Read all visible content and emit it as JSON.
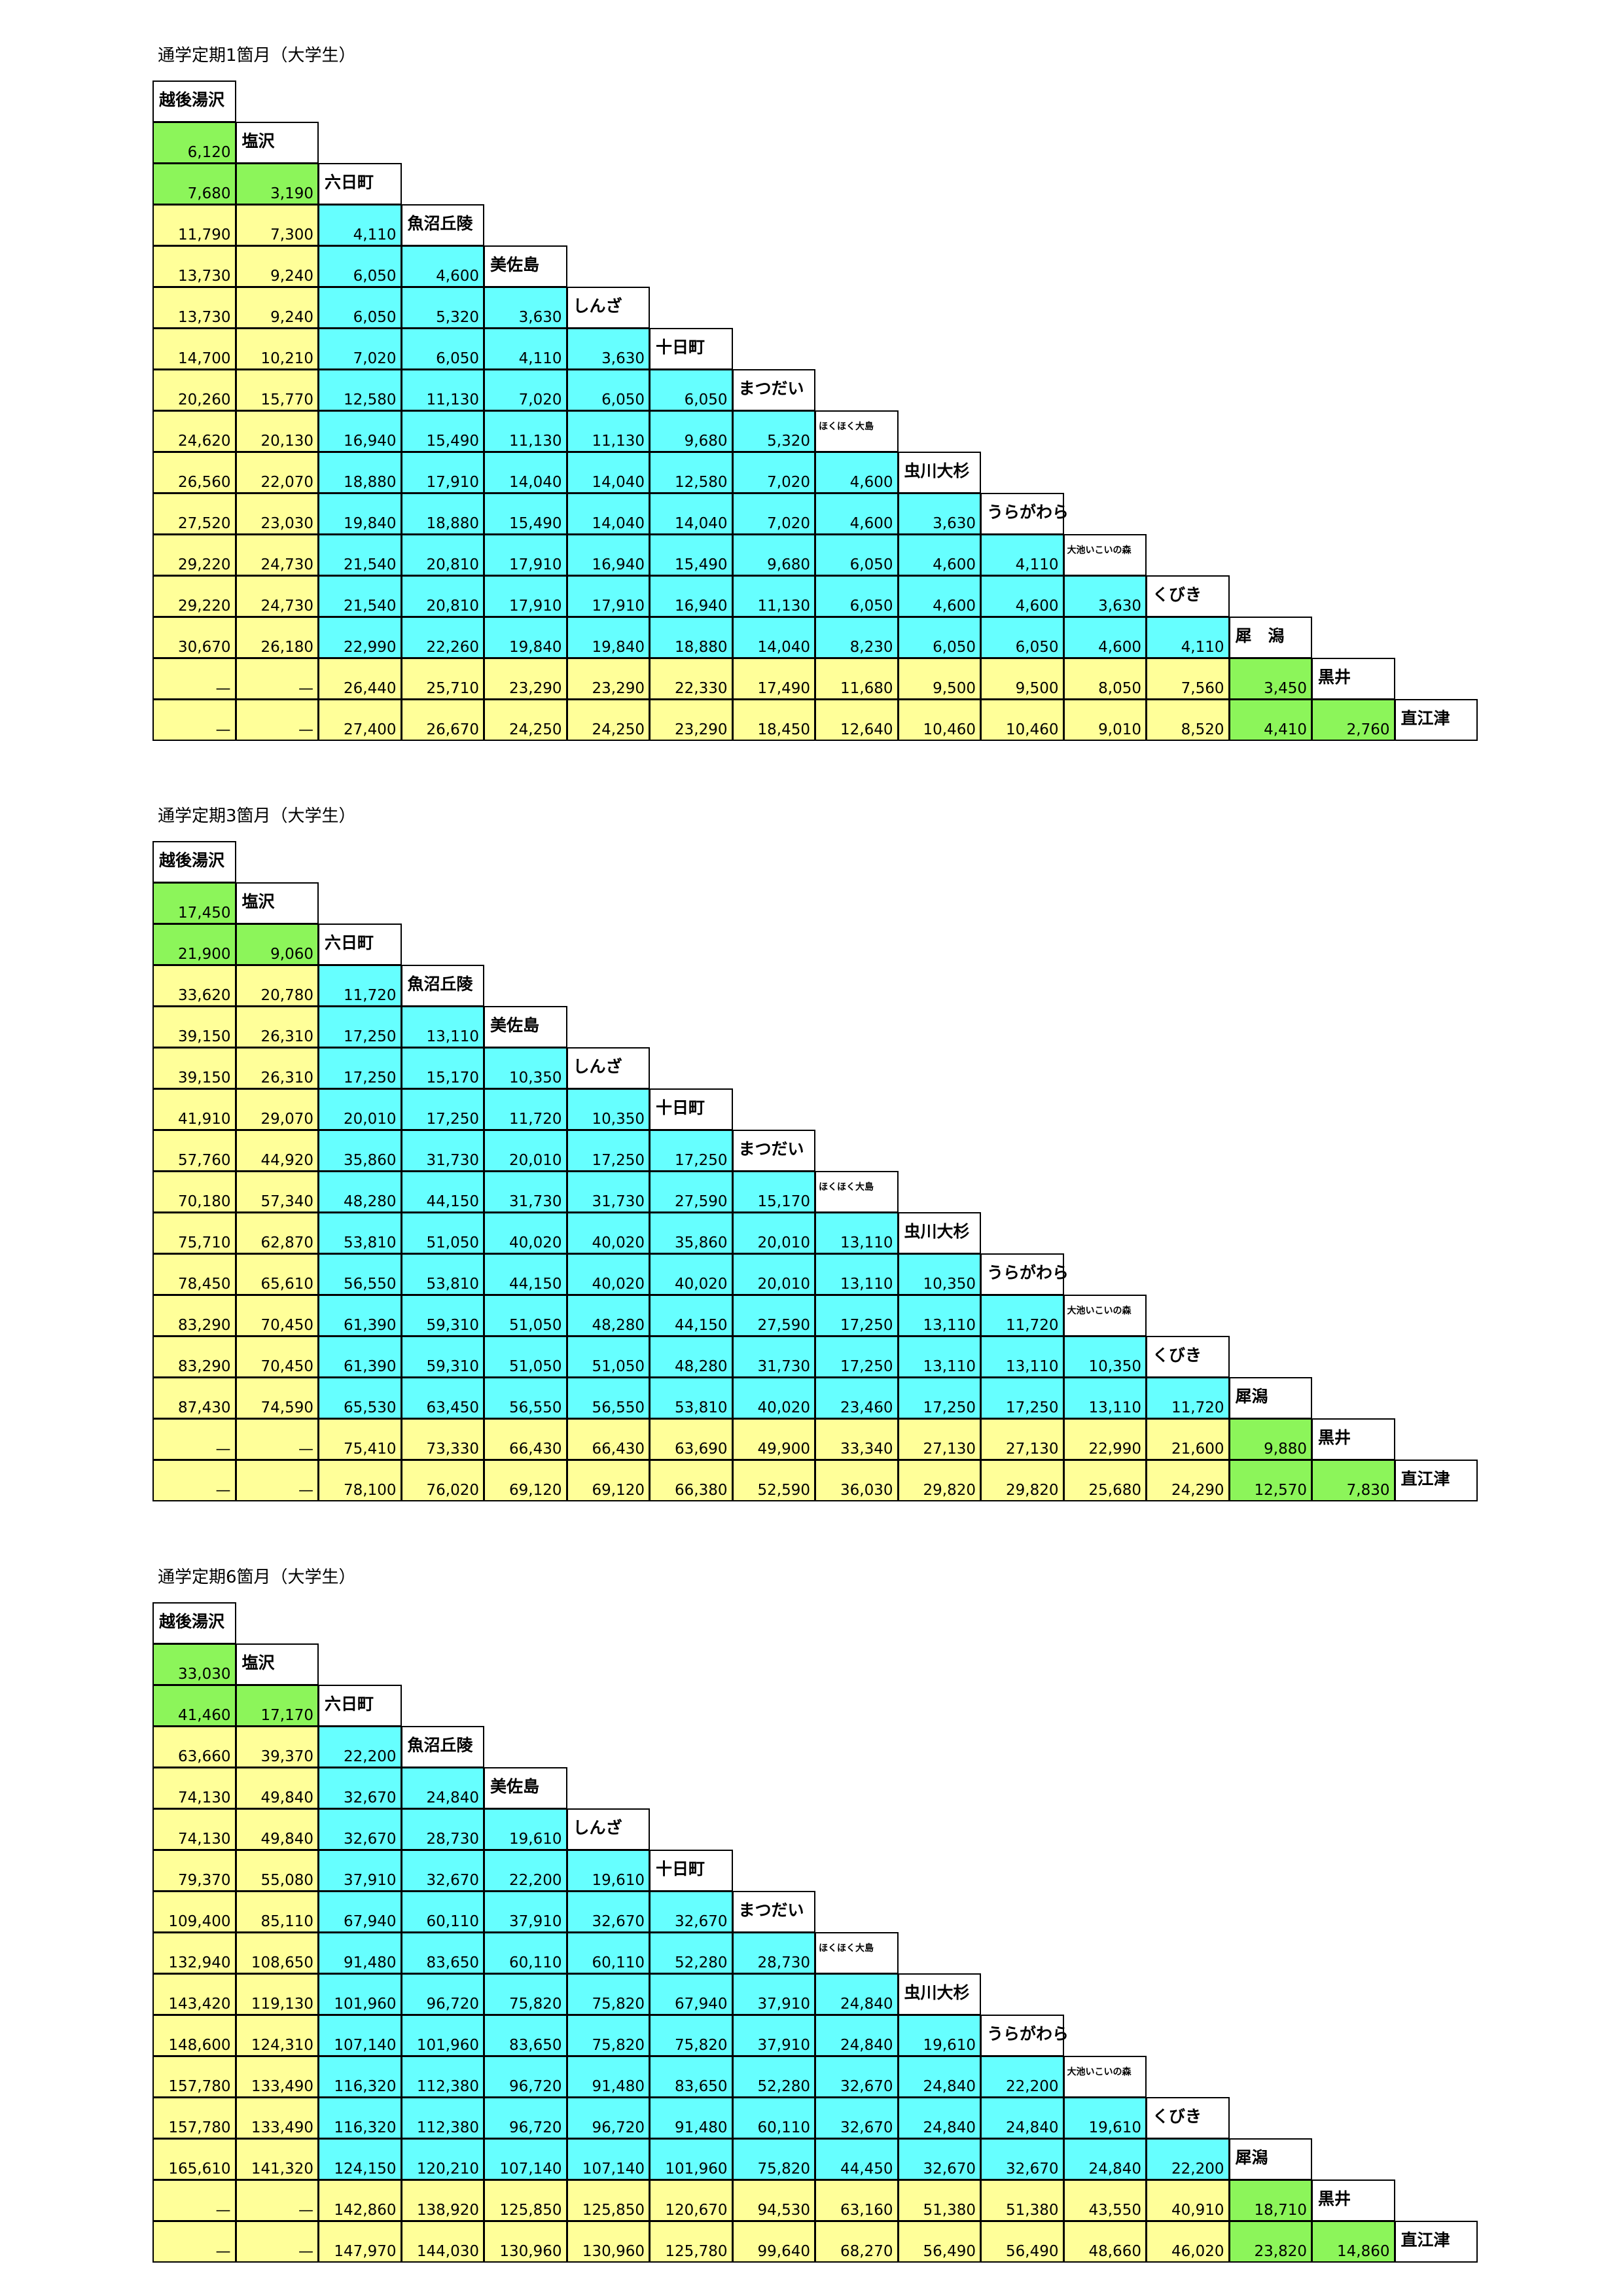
{
  "tables": [
    {
      "title": "通学定期1箇月（大学生）",
      "stations": [
        "越後湯沢",
        "塩沢",
        "六日町",
        "魚沼丘陵",
        "美佐島",
        "しんざ",
        "十日町",
        "まつだい",
        "ほくほく大島",
        "虫川大杉",
        "うらがわら",
        "大池いこいの森",
        "くびき",
        "犀　潟",
        "黒井",
        "直江津"
      ],
      "rows": [
        [
          "6,120"
        ],
        [
          "7,680",
          "3,190"
        ],
        [
          "11,790",
          "7,300",
          "4,110"
        ],
        [
          "13,730",
          "9,240",
          "6,050",
          "4,600"
        ],
        [
          "13,730",
          "9,240",
          "6,050",
          "5,320",
          "3,630"
        ],
        [
          "14,700",
          "10,210",
          "7,020",
          "6,050",
          "4,110",
          "3,630"
        ],
        [
          "20,260",
          "15,770",
          "12,580",
          "11,130",
          "7,020",
          "6,050",
          "6,050"
        ],
        [
          "24,620",
          "20,130",
          "16,940",
          "15,490",
          "11,130",
          "11,130",
          "9,680",
          "5,320"
        ],
        [
          "26,560",
          "22,070",
          "18,880",
          "17,910",
          "14,040",
          "14,040",
          "12,580",
          "7,020",
          "4,600"
        ],
        [
          "27,520",
          "23,030",
          "19,840",
          "18,880",
          "15,490",
          "14,040",
          "14,040",
          "7,020",
          "4,600",
          "3,630"
        ],
        [
          "29,220",
          "24,730",
          "21,540",
          "20,810",
          "17,910",
          "16,940",
          "15,490",
          "9,680",
          "6,050",
          "4,600",
          "4,110"
        ],
        [
          "29,220",
          "24,730",
          "21,540",
          "20,810",
          "17,910",
          "17,910",
          "16,940",
          "11,130",
          "6,050",
          "4,600",
          "4,600",
          "3,630"
        ],
        [
          "30,670",
          "26,180",
          "22,990",
          "22,260",
          "19,840",
          "19,840",
          "18,880",
          "14,040",
          "8,230",
          "6,050",
          "6,050",
          "4,600",
          "4,110"
        ],
        [
          "—",
          "—",
          "26,440",
          "25,710",
          "23,290",
          "23,290",
          "22,330",
          "17,490",
          "11,680",
          "9,500",
          "9,500",
          "8,050",
          "7,560",
          "3,450"
        ],
        [
          "—",
          "—",
          "27,400",
          "26,670",
          "24,250",
          "24,250",
          "23,290",
          "18,450",
          "12,640",
          "10,460",
          "10,460",
          "9,010",
          "8,520",
          "4,410",
          "2,760"
        ]
      ]
    },
    {
      "title": "通学定期3箇月（大学生）",
      "stations": [
        "越後湯沢",
        "塩沢",
        "六日町",
        "魚沼丘陵",
        "美佐島",
        "しんざ",
        "十日町",
        "まつだい",
        "ほくほく大島",
        "虫川大杉",
        "うらがわら",
        "大池いこいの森",
        "くびき",
        "犀潟",
        "黒井",
        "直江津"
      ],
      "rows": [
        [
          "17,450"
        ],
        [
          "21,900",
          "9,060"
        ],
        [
          "33,620",
          "20,780",
          "11,720"
        ],
        [
          "39,150",
          "26,310",
          "17,250",
          "13,110"
        ],
        [
          "39,150",
          "26,310",
          "17,250",
          "15,170",
          "10,350"
        ],
        [
          "41,910",
          "29,070",
          "20,010",
          "17,250",
          "11,720",
          "10,350"
        ],
        [
          "57,760",
          "44,920",
          "35,860",
          "31,730",
          "20,010",
          "17,250",
          "17,250"
        ],
        [
          "70,180",
          "57,340",
          "48,280",
          "44,150",
          "31,730",
          "31,730",
          "27,590",
          "15,170"
        ],
        [
          "75,710",
          "62,870",
          "53,810",
          "51,050",
          "40,020",
          "40,020",
          "35,860",
          "20,010",
          "13,110"
        ],
        [
          "78,450",
          "65,610",
          "56,550",
          "53,810",
          "44,150",
          "40,020",
          "40,020",
          "20,010",
          "13,110",
          "10,350"
        ],
        [
          "83,290",
          "70,450",
          "61,390",
          "59,310",
          "51,050",
          "48,280",
          "44,150",
          "27,590",
          "17,250",
          "13,110",
          "11,720"
        ],
        [
          "83,290",
          "70,450",
          "61,390",
          "59,310",
          "51,050",
          "51,050",
          "48,280",
          "31,730",
          "17,250",
          "13,110",
          "13,110",
          "10,350"
        ],
        [
          "87,430",
          "74,590",
          "65,530",
          "63,450",
          "56,550",
          "56,550",
          "53,810",
          "40,020",
          "23,460",
          "17,250",
          "17,250",
          "13,110",
          "11,720"
        ],
        [
          "—",
          "—",
          "75,410",
          "73,330",
          "66,430",
          "66,430",
          "63,690",
          "49,900",
          "33,340",
          "27,130",
          "27,130",
          "22,990",
          "21,600",
          "9,880"
        ],
        [
          "—",
          "—",
          "78,100",
          "76,020",
          "69,120",
          "69,120",
          "66,380",
          "52,590",
          "36,030",
          "29,820",
          "29,820",
          "25,680",
          "24,290",
          "12,570",
          "7,830"
        ]
      ]
    },
    {
      "title": "通学定期6箇月（大学生）",
      "stations": [
        "越後湯沢",
        "塩沢",
        "六日町",
        "魚沼丘陵",
        "美佐島",
        "しんざ",
        "十日町",
        "まつだい",
        "ほくほく大島",
        "虫川大杉",
        "うらがわら",
        "大池いこいの森",
        "くびき",
        "犀潟",
        "黒井",
        "直江津"
      ],
      "rows": [
        [
          "33,030"
        ],
        [
          "41,460",
          "17,170"
        ],
        [
          "63,660",
          "39,370",
          "22,200"
        ],
        [
          "74,130",
          "49,840",
          "32,670",
          "24,840"
        ],
        [
          "74,130",
          "49,840",
          "32,670",
          "28,730",
          "19,610"
        ],
        [
          "79,370",
          "55,080",
          "37,910",
          "32,670",
          "22,200",
          "19,610"
        ],
        [
          "109,400",
          "85,110",
          "67,940",
          "60,110",
          "37,910",
          "32,670",
          "32,670"
        ],
        [
          "132,940",
          "108,650",
          "91,480",
          "83,650",
          "60,110",
          "60,110",
          "52,280",
          "28,730"
        ],
        [
          "143,420",
          "119,130",
          "101,960",
          "96,720",
          "75,820",
          "75,820",
          "67,940",
          "37,910",
          "24,840"
        ],
        [
          "148,600",
          "124,310",
          "107,140",
          "101,960",
          "83,650",
          "75,820",
          "75,820",
          "37,910",
          "24,840",
          "19,610"
        ],
        [
          "157,780",
          "133,490",
          "116,320",
          "112,380",
          "96,720",
          "91,480",
          "83,650",
          "52,280",
          "32,670",
          "24,840",
          "22,200"
        ],
        [
          "157,780",
          "133,490",
          "116,320",
          "112,380",
          "96,720",
          "96,720",
          "91,480",
          "60,110",
          "32,670",
          "24,840",
          "24,840",
          "19,610"
        ],
        [
          "165,610",
          "141,320",
          "124,150",
          "120,210",
          "107,140",
          "107,140",
          "101,960",
          "75,820",
          "44,450",
          "32,670",
          "32,670",
          "24,840",
          "22,200"
        ],
        [
          "—",
          "—",
          "142,860",
          "138,920",
          "125,850",
          "125,850",
          "120,670",
          "94,530",
          "63,160",
          "51,380",
          "51,380",
          "43,550",
          "40,910",
          "18,710"
        ],
        [
          "—",
          "—",
          "147,970",
          "144,030",
          "130,960",
          "130,960",
          "125,780",
          "99,640",
          "68,270",
          "56,490",
          "56,490",
          "48,660",
          "46,020",
          "23,820",
          "14,860"
        ]
      ]
    }
  ],
  "palette": {
    "g": "#8cf55a",
    "y": "#ffff99",
    "c": "#66ffff"
  },
  "cell_colors": [
    "g",
    "gg",
    "yyc",
    "yycc",
    "yyccc",
    "yycccc",
    "yyccccc",
    "yycccccc",
    "yyccccccc",
    "yycccccccc",
    "yyccccccccc",
    "yycccccccccc",
    "yyccccccccccc",
    "yyyyyyyyyyyyyg",
    "yyyyyyyyyyyyygg"
  ]
}
